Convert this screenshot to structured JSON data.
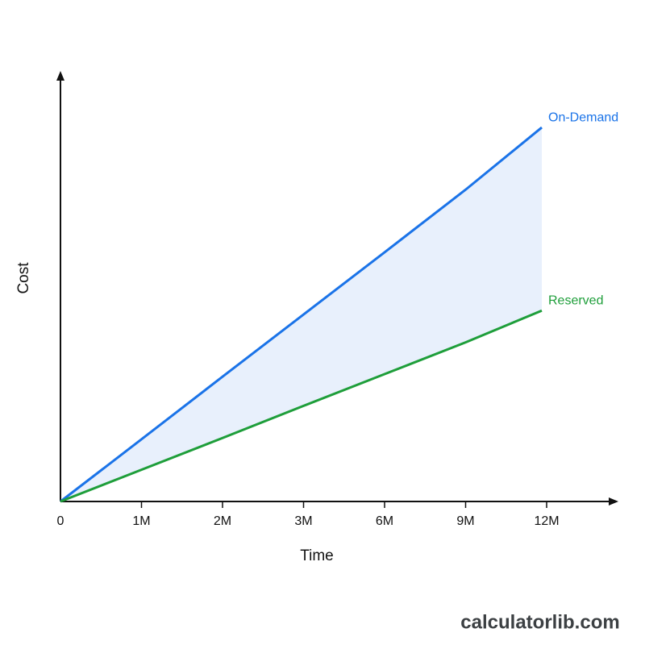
{
  "chart_data": {
    "type": "line",
    "x_label": "Time",
    "y_label": "Cost",
    "categories": [
      "0",
      "1M",
      "2M",
      "3M",
      "6M",
      "9M",
      "12M"
    ],
    "series": [
      {
        "name": "On-Demand",
        "color": "#1a73e8",
        "values": [
          0,
          14.5,
          29.1,
          43.6,
          58.1,
          72.7,
          87.2
        ]
      },
      {
        "name": "Reserved",
        "color": "#1e9e3a",
        "values": [
          0,
          7.4,
          14.8,
          22.3,
          29.7,
          37.1,
          44.5
        ]
      }
    ],
    "ylim": [
      0,
      100
    ],
    "fill_between": true,
    "fill_color": "#e8f0fc",
    "watermark": "calculatorlib.com"
  }
}
